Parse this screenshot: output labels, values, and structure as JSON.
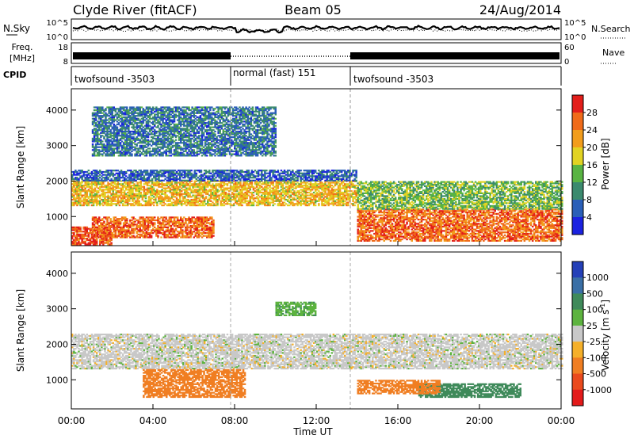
{
  "header": {
    "station": "Clyde River (fitACF)",
    "beam": "Beam 05",
    "date": "24/Aug/2014"
  },
  "strips": {
    "nsky": {
      "label": "N.Sky",
      "ticks": [
        "10^5",
        "10^0"
      ],
      "right_label": "N.Search",
      "right_ticks": [
        "10^5",
        "10^0"
      ]
    },
    "freq": {
      "label_top": "Freq.",
      "label_bottom": "[MHz]",
      "ticks": [
        "18",
        "8"
      ],
      "right_label": "Nave",
      "right_ticks": [
        "60",
        "0"
      ]
    },
    "cpid": {
      "label": "CPID",
      "segments": [
        {
          "name": "twofsound -3503",
          "start": "00:00",
          "end": "08:00"
        },
        {
          "name": "normal (fast) 151",
          "start": "08:00",
          "end": "14:00"
        },
        {
          "name": "twofsound -3503",
          "start": "14:00",
          "end": "24:00"
        }
      ]
    }
  },
  "xaxis": {
    "label": "Time UT",
    "ticks": [
      "00:00",
      "04:00",
      "08:00",
      "12:00",
      "16:00",
      "20:00",
      "00:00"
    ]
  },
  "yaxis": {
    "label": "Slant Range [km]",
    "ticks": [
      "1000",
      "2000",
      "3000",
      "4000"
    ]
  },
  "power_colorbar": {
    "label": "Power [dB]",
    "ticks": [
      "4",
      "8",
      "12",
      "16",
      "20",
      "24",
      "28"
    ],
    "colors": [
      "#1b22e0",
      "#2a5fb8",
      "#3b8a6e",
      "#59b443",
      "#e2d323",
      "#f29d1c",
      "#f06b19",
      "#e31e1a"
    ]
  },
  "velocity_colorbar": {
    "label": "Velocity [m s",
    "label_sup": "-1",
    "label_end": "]",
    "ticks": [
      "1000",
      "500",
      "100",
      "25",
      "-25",
      "-100",
      "-500",
      "-1000"
    ],
    "colors": [
      "#2440b8",
      "#3a6fa6",
      "#3f8a5a",
      "#5db33f",
      "#c8c8c8",
      "#f5b02a",
      "#f07e22",
      "#ea4a1d",
      "#e31a1a"
    ]
  },
  "chart_data": {
    "type": "heatmap",
    "x_range_hours": [
      0,
      24
    ],
    "y_range_km": [
      180,
      4600
    ],
    "panels": [
      {
        "name": "Power",
        "regions": [
          {
            "t0": 0,
            "t1": 2,
            "r0": 200,
            "r1": 700,
            "level": 28
          },
          {
            "t0": 1,
            "t1": 7,
            "r0": 400,
            "r1": 1000,
            "level": 26
          },
          {
            "t0": 0,
            "t1": 14,
            "r0": 1300,
            "r1": 2000,
            "level": 20
          },
          {
            "t0": 14,
            "t1": 24,
            "r0": 300,
            "r1": 1200,
            "level": 26
          },
          {
            "t0": 14,
            "t1": 24,
            "r0": 1200,
            "r1": 2000,
            "level": 14
          },
          {
            "t0": 0,
            "t1": 14,
            "r0": 2000,
            "r1": 2300,
            "level": 6
          },
          {
            "t0": 1,
            "t1": 10,
            "r0": 2700,
            "r1": 4100,
            "level": 8
          }
        ]
      },
      {
        "name": "Velocity",
        "regions": [
          {
            "t0": 0,
            "t1": 24,
            "r0": 1300,
            "r1": 2300,
            "level": 0
          },
          {
            "t0": 3.5,
            "t1": 8.5,
            "r0": 500,
            "r1": 1300,
            "level": -300
          },
          {
            "t0": 17,
            "t1": 22,
            "r0": 500,
            "r1": 900,
            "level": 150
          },
          {
            "t0": 14,
            "t1": 18,
            "r0": 600,
            "r1": 1000,
            "level": -300
          },
          {
            "t0": 10,
            "t1": 12,
            "r0": 2800,
            "r1": 3200,
            "level": 80
          }
        ]
      }
    ]
  }
}
